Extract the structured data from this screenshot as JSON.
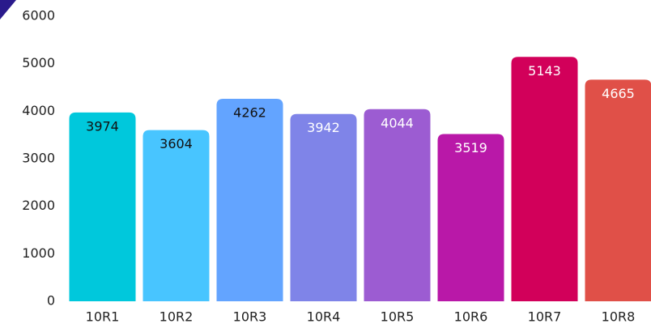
{
  "chart_data": {
    "type": "bar",
    "categories": [
      "10R1",
      "10R2",
      "10R3",
      "10R4",
      "10R5",
      "10R6",
      "10R7",
      "10R8"
    ],
    "values": [
      3974,
      3604,
      4262,
      3942,
      4044,
      3519,
      5143,
      4665
    ],
    "colors": [
      "#00c8dc",
      "#48c5ff",
      "#63a4ff",
      "#7f84e8",
      "#9c5cd2",
      "#b918a8",
      "#d2005a",
      "#e05048"
    ],
    "label_colors": [
      "#111111",
      "#111111",
      "#111111",
      "#ffffff",
      "#ffffff",
      "#ffffff",
      "#ffffff",
      "#ffffff"
    ],
    "ylim": [
      0,
      6000
    ],
    "yticks": [
      0,
      1000,
      2000,
      3000,
      4000,
      5000,
      6000
    ],
    "grid": false
  }
}
